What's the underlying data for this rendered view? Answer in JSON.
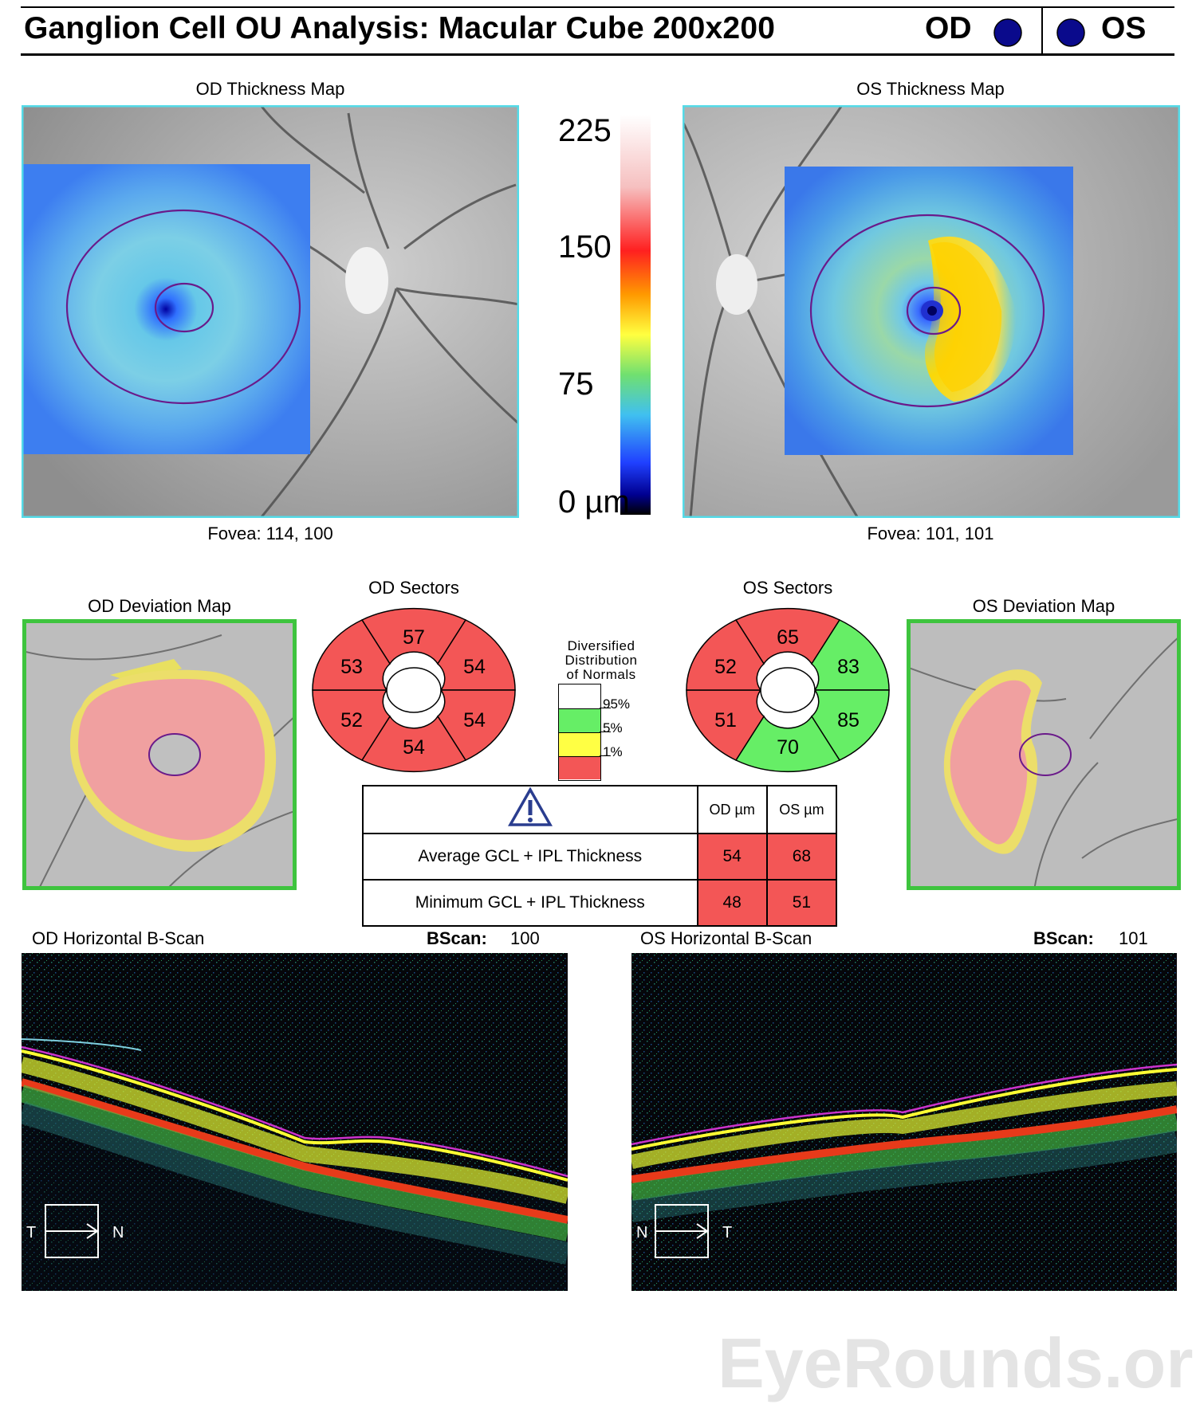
{
  "header": {
    "title": "Ganglion Cell OU Analysis: Macular Cube 200x200",
    "od_label": "OD",
    "os_label": "OS",
    "eye_dot_color": "#0a0a8c"
  },
  "thickness_maps": {
    "od": {
      "title": "OD Thickness Map",
      "fovea": "Fovea: 114, 100"
    },
    "os": {
      "title": "OS Thickness Map",
      "fovea": "Fovea: 101, 101"
    }
  },
  "color_scale": {
    "ticks": [
      "225",
      "150",
      "75",
      "0 µm"
    ]
  },
  "deviation_maps": {
    "od": {
      "title": "OD Deviation Map"
    },
    "os": {
      "title": "OS Deviation Map"
    },
    "border_color": "#3ec43e"
  },
  "sectors": {
    "od": {
      "title": "OD Sectors",
      "values": [
        "57",
        "54",
        "54",
        "54",
        "52",
        "53"
      ],
      "status": [
        "red",
        "red",
        "red",
        "red",
        "red",
        "red"
      ]
    },
    "os": {
      "title": "OS Sectors",
      "values": [
        "65",
        "83",
        "85",
        "70",
        "51",
        "52"
      ],
      "status": [
        "red",
        "green",
        "green",
        "green",
        "red",
        "red"
      ]
    }
  },
  "legend": {
    "title_lines": [
      "Diversified",
      "Distribution",
      "of Normals"
    ],
    "marks": [
      "95%",
      "5%",
      "1%"
    ],
    "colors": {
      "white": "#ffffff",
      "green": "#66ee66",
      "yellow": "#ffff44",
      "red": "#f35656"
    }
  },
  "results_table": {
    "headers": [
      "OD µm",
      "OS µm"
    ],
    "rows": [
      {
        "label": "Average GCL + IPL Thickness",
        "od": "54",
        "os": "68"
      },
      {
        "label": "Minimum GCL + IPL Thickness",
        "od": "48",
        "os": "51"
      }
    ],
    "warning_icon": "warning-triangle-icon"
  },
  "bscans": {
    "od": {
      "title": "OD Horizontal B-Scan",
      "bscan_label": "BScan:",
      "bscan_value": "100",
      "left_dir": "T",
      "right_dir": "N"
    },
    "os": {
      "title": "OS Horizontal B-Scan",
      "bscan_label": "BScan:",
      "bscan_value": "101",
      "left_dir": "N",
      "right_dir": "T"
    }
  },
  "watermark": "EyeRounds.org"
}
